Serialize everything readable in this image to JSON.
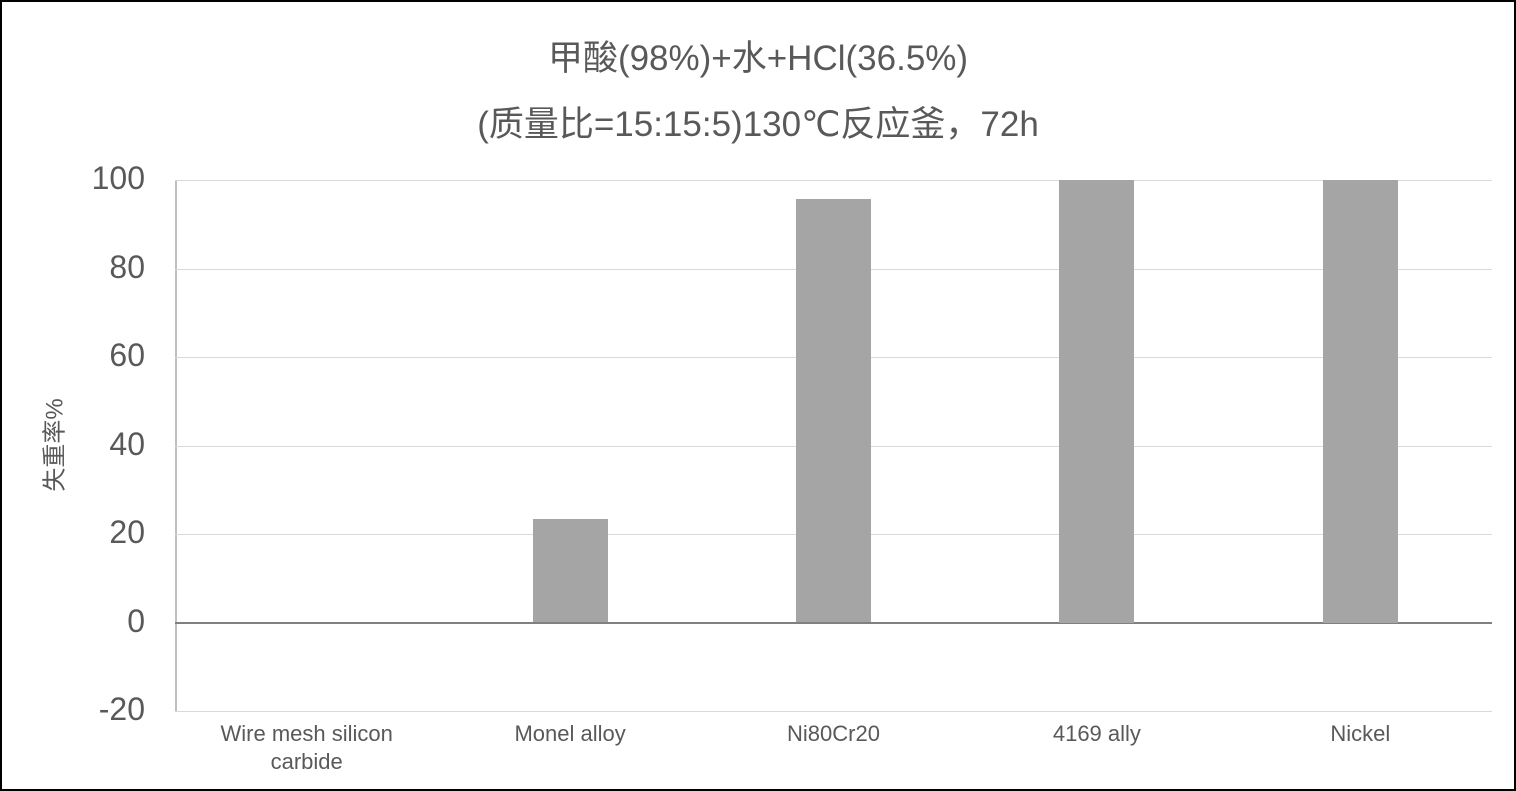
{
  "chart_data": {
    "type": "bar",
    "title": "甲酸(98%)+水+HCl(36.5%)",
    "subtitle": "(质量比=15:15:5)130℃反应釜，72h",
    "xlabel": "",
    "ylabel": "失重率%",
    "ylim": [
      -20,
      100
    ],
    "yticks": [
      "100",
      "80",
      "60",
      "40",
      "20",
      "0",
      "-20"
    ],
    "grid": true,
    "legend": "none",
    "categories": [
      "Wire mesh silicon carbide",
      "Monel alloy",
      "Ni80Cr20",
      "4169 ally",
      "Nickel"
    ],
    "values": [
      0,
      23.3,
      95.8,
      100,
      100
    ],
    "bar_color": "#a5a5a5"
  }
}
